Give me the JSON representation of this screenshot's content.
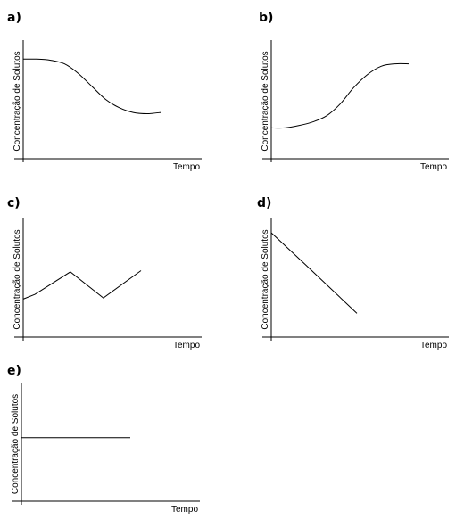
{
  "chart_data": [
    {
      "panel": "a)",
      "type": "line",
      "xlabel": "Tempo",
      "ylabel": "Concentração de Solutos",
      "curve": "smooth",
      "xlim": [
        0,
        10
      ],
      "ylim": [
        0,
        10
      ],
      "x": [
        0,
        1,
        2,
        3,
        4,
        5,
        6,
        7,
        8,
        9,
        10
      ],
      "values": [
        8.4,
        8.4,
        8.3,
        8.0,
        7.2,
        6.1,
        5.0,
        4.3,
        3.9,
        3.8,
        3.9
      ]
    },
    {
      "panel": "b)",
      "type": "line",
      "xlabel": "Tempo",
      "ylabel": "Concentração de Solutos",
      "curve": "smooth",
      "xlim": [
        0,
        10
      ],
      "ylim": [
        0,
        10
      ],
      "x": [
        0,
        1,
        2,
        3,
        4,
        5,
        6,
        7,
        8,
        9,
        10
      ],
      "values": [
        2.6,
        2.6,
        2.8,
        3.1,
        3.6,
        4.6,
        6.0,
        7.1,
        7.8,
        8.0,
        8.0
      ]
    },
    {
      "panel": "c)",
      "type": "line",
      "xlabel": "Tempo",
      "ylabel": "Concentração de Solutos",
      "curve": "linear",
      "xlim": [
        0,
        10
      ],
      "ylim": [
        0,
        10
      ],
      "x": [
        0,
        1,
        4,
        6.8,
        10
      ],
      "values": [
        3.2,
        3.6,
        5.5,
        3.3,
        5.6
      ]
    },
    {
      "panel": "d)",
      "type": "line",
      "xlabel": "Tempo",
      "ylabel": "Concentração de Solutos",
      "curve": "linear",
      "xlim": [
        0,
        10
      ],
      "ylim": [
        0,
        10
      ],
      "x": [
        0,
        4,
        10
      ],
      "values": [
        8.8,
        6.1,
        2.0
      ]
    },
    {
      "panel": "e)",
      "type": "line",
      "xlabel": "Tempo",
      "ylabel": "Concentração de Solutos",
      "curve": "linear",
      "xlim": [
        0,
        10
      ],
      "ylim": [
        0,
        10
      ],
      "x": [
        0,
        10
      ],
      "values": [
        5.4,
        5.4
      ]
    }
  ]
}
